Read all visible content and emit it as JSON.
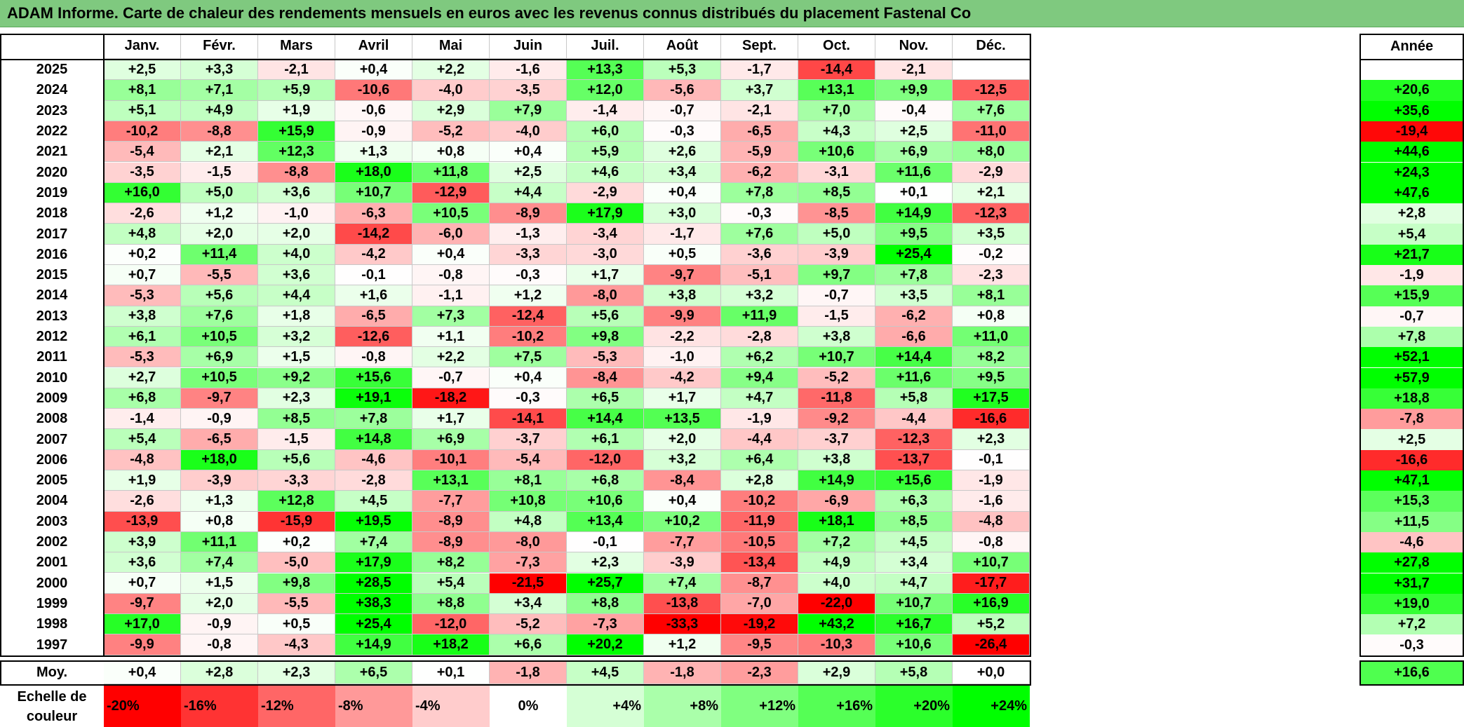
{
  "title": "ADAM Informe. Carte de chaleur des rendements mensuels en euros avec les revenus connus distribués du placement Fastenal Co",
  "chart_data": {
    "type": "heatmap",
    "title": "ADAM Informe. Carte de chaleur des rendements mensuels en euros avec les revenus connus distribués du placement Fastenal Co",
    "columns": [
      "Janv.",
      "Févr.",
      "Mars",
      "Avril",
      "Mai",
      "Juin",
      "Juil.",
      "Août",
      "Sept.",
      "Oct.",
      "Nov.",
      "Déc."
    ],
    "year_column_label": "Année",
    "rows": [
      {
        "year": "2025",
        "values": [
          "+2,5",
          "+3,3",
          "-2,1",
          "+0,4",
          "+2,2",
          "-1,6",
          "+13,3",
          "+5,3",
          "-1,7",
          "-14,4",
          "-2,1",
          ""
        ],
        "annual": ""
      },
      {
        "year": "2024",
        "values": [
          "+8,1",
          "+7,1",
          "+5,9",
          "-10,6",
          "-4,0",
          "-3,5",
          "+12,0",
          "-5,6",
          "+3,7",
          "+13,1",
          "+9,9",
          "-12,5"
        ],
        "annual": "+20,6"
      },
      {
        "year": "2023",
        "values": [
          "+5,1",
          "+4,9",
          "+1,9",
          "-0,6",
          "+2,9",
          "+7,9",
          "-1,4",
          "-0,7",
          "-2,1",
          "+7,0",
          "-0,4",
          "+7,6"
        ],
        "annual": "+35,6"
      },
      {
        "year": "2022",
        "values": [
          "-10,2",
          "-8,8",
          "+15,9",
          "-0,9",
          "-5,2",
          "-4,0",
          "+6,0",
          "-0,3",
          "-6,5",
          "+4,3",
          "+2,5",
          "-11,0"
        ],
        "annual": "-19,4"
      },
      {
        "year": "2021",
        "values": [
          "-5,4",
          "+2,1",
          "+12,3",
          "+1,3",
          "+0,8",
          "+0,4",
          "+5,9",
          "+2,6",
          "-5,9",
          "+10,6",
          "+6,9",
          "+8,0"
        ],
        "annual": "+44,6"
      },
      {
        "year": "2020",
        "values": [
          "-3,5",
          "-1,5",
          "-8,8",
          "+18,0",
          "+11,8",
          "+2,5",
          "+4,6",
          "+3,4",
          "-6,2",
          "-3,1",
          "+11,6",
          "-2,9"
        ],
        "annual": "+24,3"
      },
      {
        "year": "2019",
        "values": [
          "+16,0",
          "+5,0",
          "+3,6",
          "+10,7",
          "-12,9",
          "+4,4",
          "-2,9",
          "+0,4",
          "+7,8",
          "+8,5",
          "+0,1",
          "+2,1"
        ],
        "annual": "+47,6"
      },
      {
        "year": "2018",
        "values": [
          "-2,6",
          "+1,2",
          "-1,0",
          "-6,3",
          "+10,5",
          "-8,9",
          "+17,9",
          "+3,0",
          "-0,3",
          "-8,5",
          "+14,9",
          "-12,3"
        ],
        "annual": "+2,8"
      },
      {
        "year": "2017",
        "values": [
          "+4,8",
          "+2,0",
          "+2,0",
          "-14,2",
          "-6,0",
          "-1,3",
          "-3,4",
          "-1,7",
          "+7,6",
          "+5,0",
          "+9,5",
          "+3,5"
        ],
        "annual": "+5,4"
      },
      {
        "year": "2016",
        "values": [
          "+0,2",
          "+11,4",
          "+4,0",
          "-4,2",
          "+0,4",
          "-3,3",
          "-3,0",
          "+0,5",
          "-3,6",
          "-3,9",
          "+25,4",
          "-0,2"
        ],
        "annual": "+21,7"
      },
      {
        "year": "2015",
        "values": [
          "+0,7",
          "-5,5",
          "+3,6",
          "-0,1",
          "-0,8",
          "-0,3",
          "+1,7",
          "-9,7",
          "-5,1",
          "+9,7",
          "+7,8",
          "-2,3"
        ],
        "annual": "-1,9"
      },
      {
        "year": "2014",
        "values": [
          "-5,3",
          "+5,6",
          "+4,4",
          "+1,6",
          "-1,1",
          "+1,2",
          "-8,0",
          "+3,8",
          "+3,2",
          "-0,7",
          "+3,5",
          "+8,1"
        ],
        "annual": "+15,9"
      },
      {
        "year": "2013",
        "values": [
          "+3,8",
          "+7,6",
          "+1,8",
          "-6,5",
          "+7,3",
          "-12,4",
          "+5,6",
          "-9,9",
          "+11,9",
          "-1,5",
          "-6,2",
          "+0,8"
        ],
        "annual": "-0,7"
      },
      {
        "year": "2012",
        "values": [
          "+6,1",
          "+10,5",
          "+3,2",
          "-12,6",
          "+1,1",
          "-10,2",
          "+9,8",
          "-2,2",
          "-2,8",
          "+3,8",
          "-6,6",
          "+11,0"
        ],
        "annual": "+7,8"
      },
      {
        "year": "2011",
        "values": [
          "-5,3",
          "+6,9",
          "+1,5",
          "-0,8",
          "+2,2",
          "+7,5",
          "-5,3",
          "-1,0",
          "+6,2",
          "+10,7",
          "+14,4",
          "+8,2"
        ],
        "annual": "+52,1"
      },
      {
        "year": "2010",
        "values": [
          "+2,7",
          "+10,5",
          "+9,2",
          "+15,6",
          "-0,7",
          "+0,4",
          "-8,4",
          "-4,2",
          "+9,4",
          "-5,2",
          "+11,6",
          "+9,5"
        ],
        "annual": "+57,9"
      },
      {
        "year": "2009",
        "values": [
          "+6,8",
          "-9,7",
          "+2,3",
          "+19,1",
          "-18,2",
          "-0,3",
          "+6,5",
          "+1,7",
          "+4,7",
          "-11,8",
          "+5,8",
          "+17,5"
        ],
        "annual": "+18,8"
      },
      {
        "year": "2008",
        "values": [
          "-1,4",
          "-0,9",
          "+8,5",
          "+7,8",
          "+1,7",
          "-14,1",
          "+14,4",
          "+13,5",
          "-1,9",
          "-9,2",
          "-4,4",
          "-16,6"
        ],
        "annual": "-7,8"
      },
      {
        "year": "2007",
        "values": [
          "+5,4",
          "-6,5",
          "-1,5",
          "+14,8",
          "+6,9",
          "-3,7",
          "+6,1",
          "+2,0",
          "-4,4",
          "-3,7",
          "-12,3",
          "+2,3"
        ],
        "annual": "+2,5"
      },
      {
        "year": "2006",
        "values": [
          "-4,8",
          "+18,0",
          "+5,6",
          "-4,6",
          "-10,1",
          "-5,4",
          "-12,0",
          "+3,2",
          "+6,4",
          "+3,8",
          "-13,7",
          "-0,1"
        ],
        "annual": "-16,6"
      },
      {
        "year": "2005",
        "values": [
          "+1,9",
          "-3,9",
          "-3,3",
          "-2,8",
          "+13,1",
          "+8,1",
          "+6,8",
          "-8,4",
          "+2,8",
          "+14,9",
          "+15,6",
          "-1,9"
        ],
        "annual": "+47,1"
      },
      {
        "year": "2004",
        "values": [
          "-2,6",
          "+1,3",
          "+12,8",
          "+4,5",
          "-7,7",
          "+10,8",
          "+10,6",
          "+0,4",
          "-10,2",
          "-6,9",
          "+6,3",
          "-1,6"
        ],
        "annual": "+15,3"
      },
      {
        "year": "2003",
        "values": [
          "-13,9",
          "+0,8",
          "-15,9",
          "+19,5",
          "-8,9",
          "+4,8",
          "+13,4",
          "+10,2",
          "-11,9",
          "+18,1",
          "+8,5",
          "-4,8"
        ],
        "annual": "+11,5"
      },
      {
        "year": "2002",
        "values": [
          "+3,9",
          "+11,1",
          "+0,2",
          "+7,4",
          "-8,9",
          "-8,0",
          "-0,1",
          "-7,7",
          "-10,5",
          "+7,2",
          "+4,5",
          "-0,8"
        ],
        "annual": "-4,6"
      },
      {
        "year": "2001",
        "values": [
          "+3,6",
          "+7,4",
          "-5,0",
          "+17,9",
          "+8,2",
          "-7,3",
          "+2,3",
          "-3,9",
          "-13,4",
          "+4,9",
          "+3,4",
          "+10,7"
        ],
        "annual": "+27,8"
      },
      {
        "year": "2000",
        "values": [
          "+0,7",
          "+1,5",
          "+9,8",
          "+28,5",
          "+5,4",
          "-21,5",
          "+25,7",
          "+7,4",
          "-8,7",
          "+4,0",
          "+4,7",
          "-17,7"
        ],
        "annual": "+31,7"
      },
      {
        "year": "1999",
        "values": [
          "-9,7",
          "+2,0",
          "-5,5",
          "+38,3",
          "+8,8",
          "+3,4",
          "+8,8",
          "-13,8",
          "-7,0",
          "-22,0",
          "+10,7",
          "+16,9"
        ],
        "annual": "+19,0"
      },
      {
        "year": "1998",
        "values": [
          "+17,0",
          "-0,9",
          "+0,5",
          "+25,4",
          "-12,0",
          "-5,2",
          "-7,3",
          "-33,3",
          "-19,2",
          "+43,2",
          "+16,7",
          "+5,2"
        ],
        "annual": "+7,2"
      },
      {
        "year": "1997",
        "values": [
          "-9,9",
          "-0,8",
          "-4,3",
          "+14,9",
          "+18,2",
          "+6,6",
          "+20,2",
          "+1,2",
          "-9,5",
          "-10,3",
          "+10,6",
          "-26,4"
        ],
        "annual": "-0,3"
      }
    ],
    "average": {
      "label": "Moy.",
      "values": [
        "+0,4",
        "+2,8",
        "+2,3",
        "+6,5",
        "+0,1",
        "-1,8",
        "+4,5",
        "-1,8",
        "-2,3",
        "+2,9",
        "+5,8",
        "+0,0"
      ],
      "annual": "+16,6"
    },
    "color_scale": {
      "label": "Echelle de couleur",
      "steps": [
        "-20%",
        "-16%",
        "-12%",
        "-8%",
        "-4%",
        "0%",
        "+4%",
        "+8%",
        "+12%",
        "+16%",
        "+20%",
        "+24%"
      ],
      "monthly_range": [
        -20,
        20
      ],
      "annual_range": [
        -20,
        24
      ]
    },
    "colors": {
      "negative": "#ff0000",
      "positive": "#00ff00",
      "neutral": "#ffffff",
      "title_bar": "#7fc97f"
    }
  }
}
